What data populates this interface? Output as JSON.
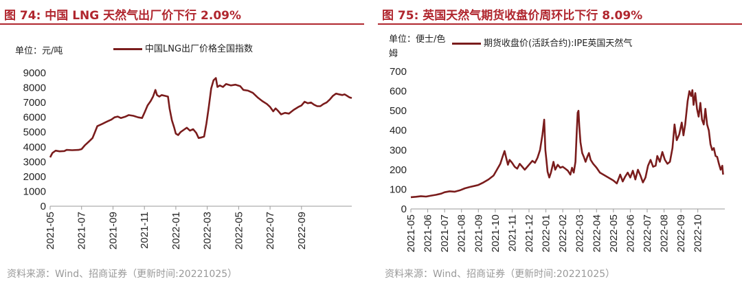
{
  "panels": [
    {
      "title": "图 74:  中国 LNG 天然气出厂价下行 2.09%",
      "unit": "单位：元/吨",
      "legend": "中国LNG出厂价格全国指数",
      "source": "资料来源：Wind、招商证券（更新时间:20221025）"
    },
    {
      "title": "图 75:  英国天然气期货收盘价周环比下行 8.09%",
      "unit": "单位：便士/色姆",
      "legend": "期货收盘价(活跃合约):IPE英国天然气",
      "source": "资料来源：Wind、招商证券（更新时间:20221025）"
    }
  ],
  "chart_data": [
    {
      "type": "line",
      "ylim": [
        0,
        9000
      ],
      "yticks": [
        "0",
        "1000",
        "2000",
        "3000",
        "4000",
        "5000",
        "6000",
        "7000",
        "8000",
        "9000"
      ],
      "xlim": [
        "2021-05",
        "2022-10.6"
      ],
      "xticks": [
        "2021-05",
        "2021-07",
        "2021-09",
        "2021-11",
        "2022-01",
        "2022-03",
        "2022-05",
        "2022-07",
        "2022-09"
      ],
      "color": "#7a1c1c",
      "series": [
        {
          "name": "中国LNG出厂价格全国指数",
          "points": [
            [
              0,
              3300
            ],
            [
              0.15,
              3600
            ],
            [
              0.35,
              3750
            ],
            [
              0.6,
              3700
            ],
            [
              0.9,
              3720
            ],
            [
              1.05,
              3800
            ],
            [
              1.4,
              3780
            ],
            [
              1.8,
              3800
            ],
            [
              2.0,
              3850
            ],
            [
              2.2,
              4100
            ],
            [
              2.5,
              4400
            ],
            [
              2.7,
              4600
            ],
            [
              2.85,
              5000
            ],
            [
              3.0,
              5400
            ],
            [
              3.3,
              5550
            ],
            [
              3.6,
              5700
            ],
            [
              3.9,
              5850
            ],
            [
              4.1,
              6000
            ],
            [
              4.3,
              6050
            ],
            [
              4.5,
              5950
            ],
            [
              4.8,
              6050
            ],
            [
              5.0,
              6150
            ],
            [
              5.3,
              6100
            ],
            [
              5.6,
              6000
            ],
            [
              5.85,
              5950
            ],
            [
              6.0,
              6300
            ],
            [
              6.2,
              6800
            ],
            [
              6.4,
              7100
            ],
            [
              6.55,
              7400
            ],
            [
              6.7,
              7850
            ],
            [
              6.8,
              7500
            ],
            [
              6.95,
              7400
            ],
            [
              7.1,
              7500
            ],
            [
              7.3,
              7450
            ],
            [
              7.5,
              7400
            ],
            [
              7.6,
              6600
            ],
            [
              7.75,
              5800
            ],
            [
              7.9,
              5300
            ],
            [
              8.0,
              4900
            ],
            [
              8.15,
              4800
            ],
            [
              8.3,
              5000
            ],
            [
              8.5,
              5150
            ],
            [
              8.7,
              5300
            ],
            [
              8.9,
              5100
            ],
            [
              9.1,
              5200
            ],
            [
              9.3,
              4950
            ],
            [
              9.45,
              4600
            ],
            [
              9.65,
              4650
            ],
            [
              9.8,
              4700
            ],
            [
              9.95,
              5600
            ],
            [
              10.1,
              6700
            ],
            [
              10.25,
              7950
            ],
            [
              10.4,
              8500
            ],
            [
              10.55,
              8650
            ],
            [
              10.65,
              8050
            ],
            [
              10.8,
              8150
            ],
            [
              11.0,
              8050
            ],
            [
              11.2,
              8250
            ],
            [
              11.5,
              8150
            ],
            [
              11.8,
              8200
            ],
            [
              12.1,
              8100
            ],
            [
              12.3,
              7850
            ],
            [
              12.6,
              7800
            ],
            [
              12.9,
              7650
            ],
            [
              13.2,
              7350
            ],
            [
              13.5,
              7100
            ],
            [
              13.8,
              6900
            ],
            [
              14.0,
              6700
            ],
            [
              14.2,
              6400
            ],
            [
              14.35,
              6600
            ],
            [
              14.5,
              6450
            ],
            [
              14.7,
              6200
            ],
            [
              14.95,
              6300
            ],
            [
              15.2,
              6250
            ],
            [
              15.5,
              6500
            ],
            [
              15.8,
              6700
            ],
            [
              16.0,
              6800
            ],
            [
              16.2,
              7050
            ],
            [
              16.4,
              6950
            ],
            [
              16.6,
              7000
            ],
            [
              16.8,
              6850
            ],
            [
              17.0,
              6750
            ],
            [
              17.2,
              6750
            ],
            [
              17.4,
              6900
            ],
            [
              17.6,
              7000
            ],
            [
              17.8,
              7200
            ],
            [
              18.0,
              7450
            ],
            [
              18.2,
              7600
            ],
            [
              18.4,
              7550
            ],
            [
              18.6,
              7500
            ],
            [
              18.75,
              7550
            ],
            [
              18.9,
              7450
            ],
            [
              19.05,
              7350
            ],
            [
              19.2,
              7300
            ]
          ]
        }
      ]
    },
    {
      "type": "line",
      "ylim": [
        0,
        700
      ],
      "yticks": [
        "0",
        "100",
        "200",
        "300",
        "400",
        "500",
        "600",
        "700"
      ],
      "xlim": [
        "2021-05",
        "2022-10.8"
      ],
      "xticks": [
        "2021-05",
        "2021-06",
        "2021-07",
        "2021-08",
        "2021-09",
        "2021-10",
        "2021-11",
        "2021-12",
        "2022-01",
        "2022-02",
        "2022-03",
        "2022-04",
        "2022-05",
        "2022-06",
        "2022-07",
        "2022-08",
        "2022-09",
        "2022-10"
      ],
      "color": "#7a1c1c",
      "series": [
        {
          "name": "期货收盘价(活跃合约):IPE英国天然气",
          "points": [
            [
              0,
              60
            ],
            [
              0.3,
              62
            ],
            [
              0.6,
              65
            ],
            [
              0.9,
              63
            ],
            [
              1.2,
              68
            ],
            [
              1.5,
              72
            ],
            [
              1.8,
              78
            ],
            [
              2.0,
              85
            ],
            [
              2.3,
              90
            ],
            [
              2.6,
              88
            ],
            [
              2.9,
              95
            ],
            [
              3.2,
              105
            ],
            [
              3.5,
              112
            ],
            [
              3.8,
              118
            ],
            [
              4.0,
              122
            ],
            [
              4.3,
              135
            ],
            [
              4.6,
              150
            ],
            [
              4.9,
              170
            ],
            [
              5.1,
              200
            ],
            [
              5.3,
              230
            ],
            [
              5.45,
              270
            ],
            [
              5.55,
              295
            ],
            [
              5.65,
              260
            ],
            [
              5.75,
              225
            ],
            [
              5.85,
              250
            ],
            [
              6.0,
              235
            ],
            [
              6.15,
              215
            ],
            [
              6.3,
              205
            ],
            [
              6.45,
              230
            ],
            [
              6.6,
              215
            ],
            [
              6.75,
              200
            ],
            [
              6.9,
              215
            ],
            [
              7.05,
              230
            ],
            [
              7.2,
              245
            ],
            [
              7.35,
              235
            ],
            [
              7.5,
              260
            ],
            [
              7.65,
              300
            ],
            [
              7.8,
              380
            ],
            [
              7.9,
              455
            ],
            [
              7.97,
              300
            ],
            [
              8.03,
              250
            ],
            [
              8.1,
              190
            ],
            [
              8.2,
              160
            ],
            [
              8.3,
              185
            ],
            [
              8.45,
              240
            ],
            [
              8.55,
              200
            ],
            [
              8.7,
              225
            ],
            [
              8.85,
              210
            ],
            [
              9.0,
              215
            ],
            [
              9.15,
              205
            ],
            [
              9.3,
              195
            ],
            [
              9.45,
              175
            ],
            [
              9.55,
              210
            ],
            [
              9.65,
              185
            ],
            [
              9.75,
              240
            ],
            [
              9.82,
              380
            ],
            [
              9.88,
              490
            ],
            [
              9.93,
              500
            ],
            [
              9.98,
              420
            ],
            [
              10.05,
              340
            ],
            [
              10.15,
              285
            ],
            [
              10.25,
              265
            ],
            [
              10.35,
              240
            ],
            [
              10.45,
              265
            ],
            [
              10.55,
              285
            ],
            [
              10.65,
              250
            ],
            [
              10.8,
              230
            ],
            [
              11.0,
              210
            ],
            [
              11.2,
              185
            ],
            [
              11.4,
              175
            ],
            [
              11.6,
              165
            ],
            [
              11.8,
              155
            ],
            [
              12.0,
              145
            ],
            [
              12.2,
              130
            ],
            [
              12.4,
              175
            ],
            [
              12.55,
              140
            ],
            [
              12.7,
              165
            ],
            [
              12.85,
              185
            ],
            [
              13.0,
              160
            ],
            [
              13.15,
              195
            ],
            [
              13.3,
              150
            ],
            [
              13.45,
              200
            ],
            [
              13.6,
              170
            ],
            [
              13.75,
              135
            ],
            [
              13.9,
              160
            ],
            [
              14.05,
              220
            ],
            [
              14.2,
              250
            ],
            [
              14.35,
              215
            ],
            [
              14.5,
              220
            ],
            [
              14.6,
              270
            ],
            [
              14.75,
              240
            ],
            [
              14.9,
              290
            ],
            [
              15.05,
              250
            ],
            [
              15.2,
              230
            ],
            [
              15.35,
              240
            ],
            [
              15.5,
              310
            ],
            [
              15.62,
              430
            ],
            [
              15.75,
              350
            ],
            [
              15.9,
              380
            ],
            [
              16.05,
              440
            ],
            [
              16.15,
              375
            ],
            [
              16.25,
              430
            ],
            [
              16.4,
              550
            ],
            [
              16.5,
              600
            ],
            [
              16.6,
              575
            ],
            [
              16.68,
              605
            ],
            [
              16.75,
              530
            ],
            [
              16.85,
              590
            ],
            [
              16.95,
              510
            ],
            [
              17.05,
              470
            ],
            [
              17.15,
              540
            ],
            [
              17.25,
              455
            ],
            [
              17.35,
              430
            ],
            [
              17.45,
              510
            ],
            [
              17.55,
              430
            ],
            [
              17.65,
              400
            ],
            [
              17.75,
              330
            ],
            [
              17.85,
              300
            ],
            [
              17.95,
              310
            ],
            [
              18.05,
              270
            ],
            [
              18.15,
              265
            ],
            [
              18.25,
              230
            ],
            [
              18.35,
              200
            ],
            [
              18.45,
              220
            ],
            [
              18.5,
              175
            ]
          ]
        }
      ]
    }
  ]
}
